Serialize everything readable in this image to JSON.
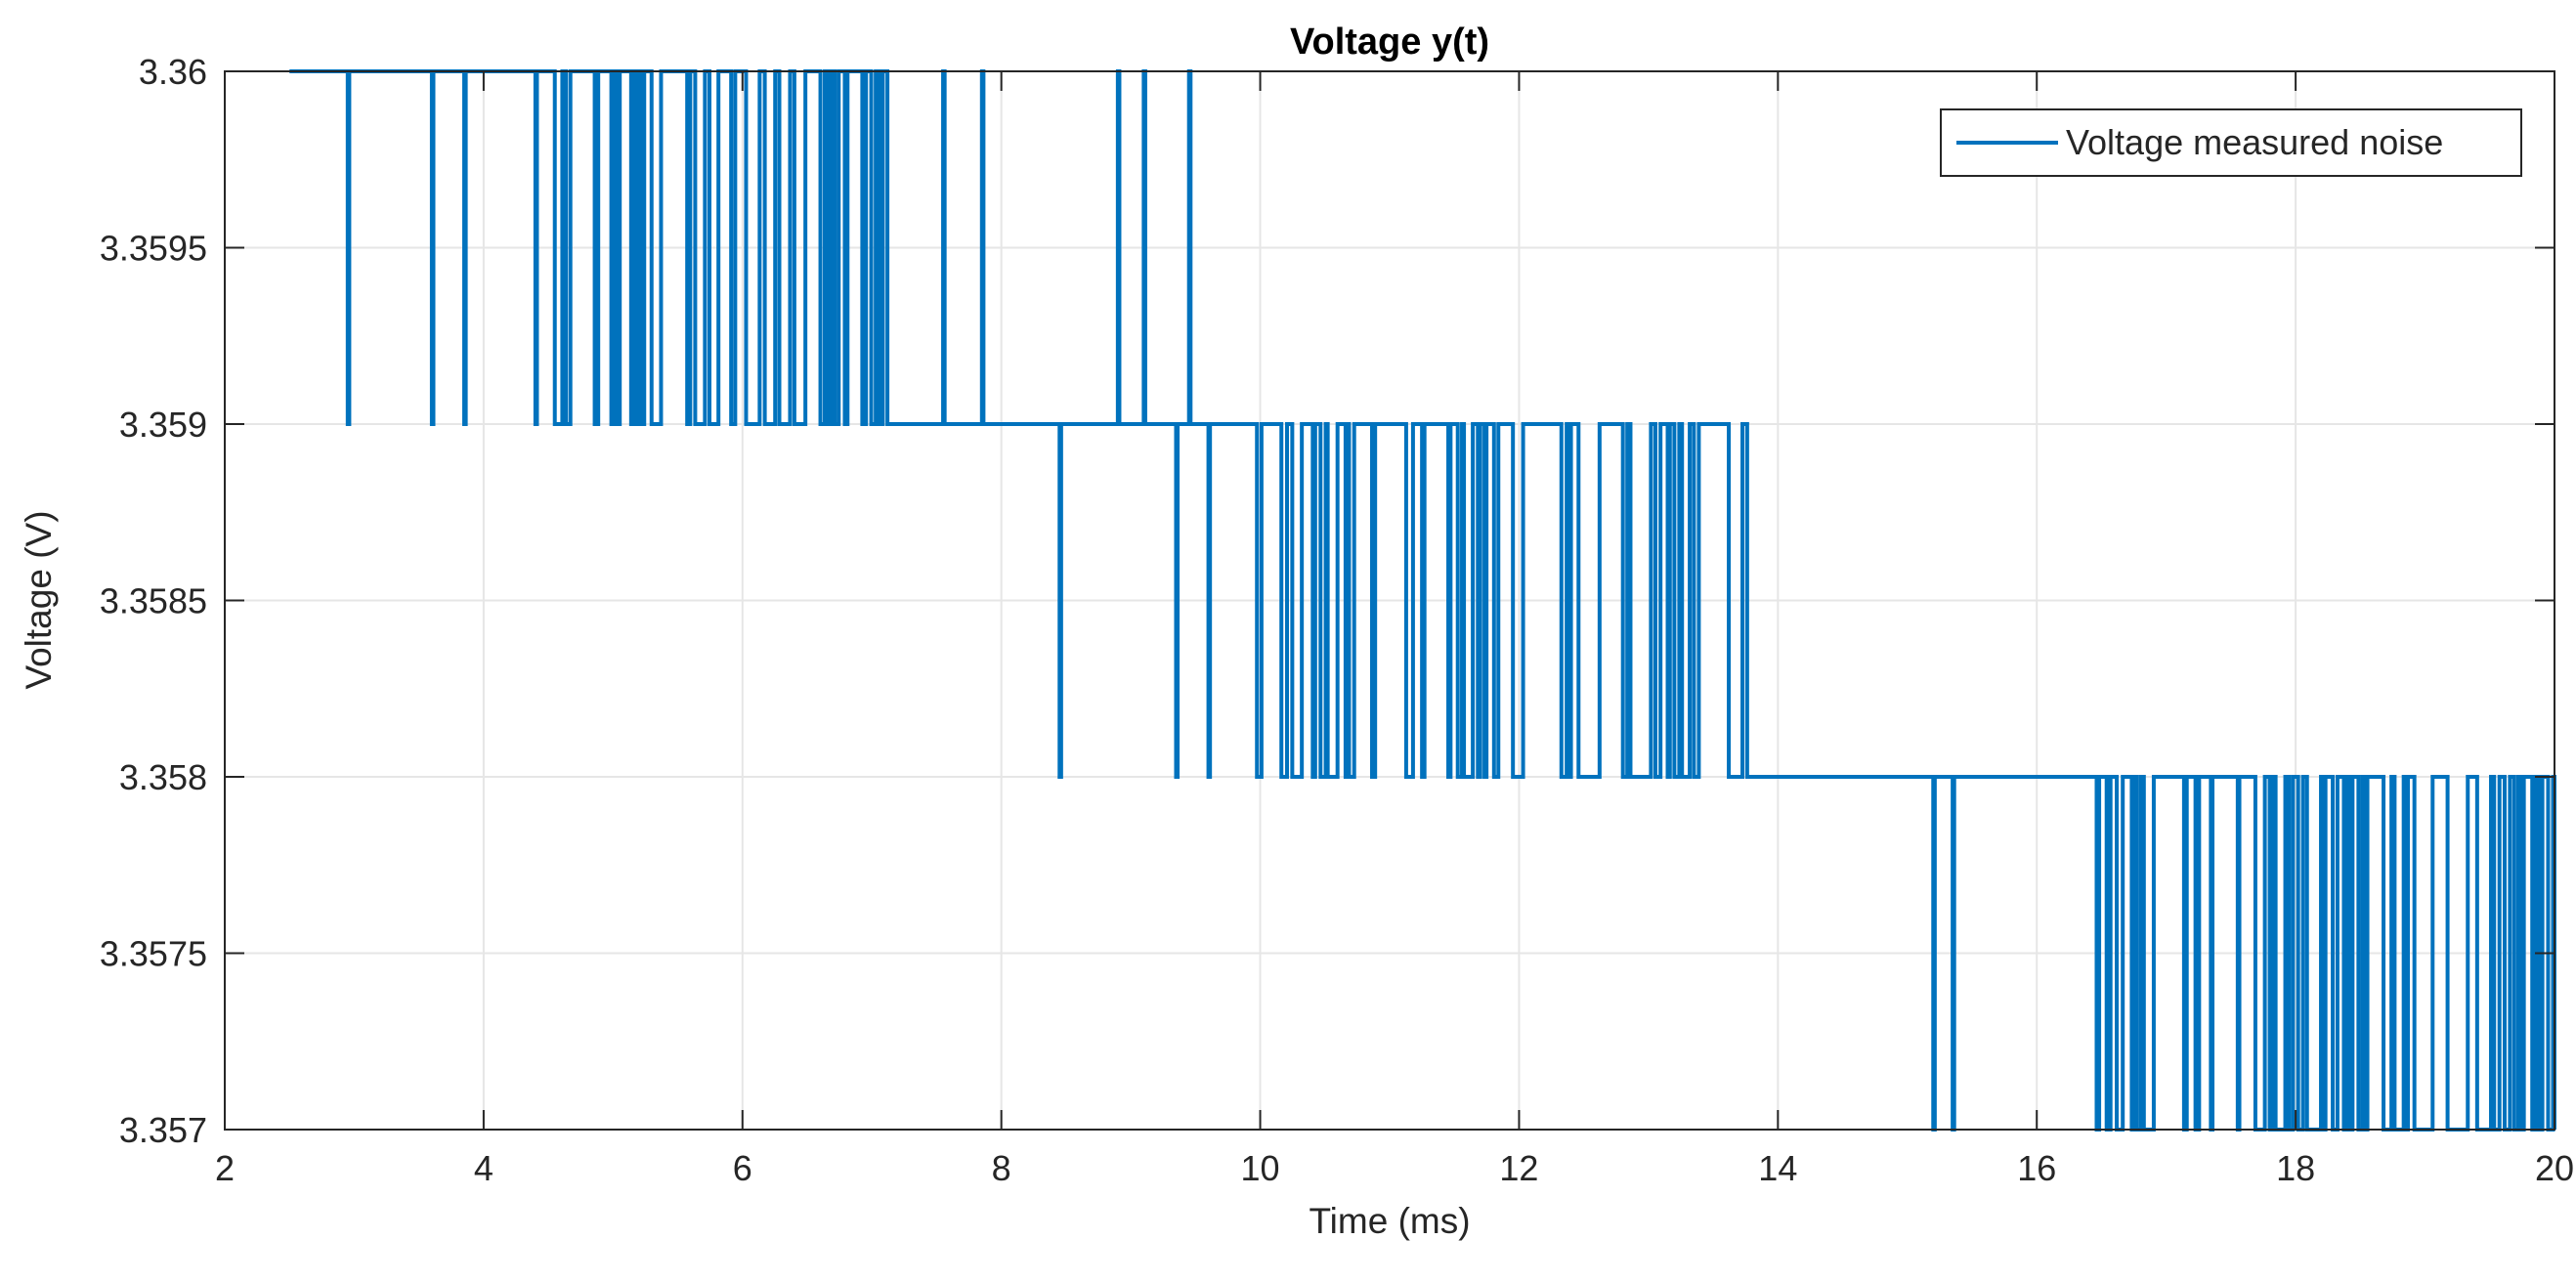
{
  "chart_data": {
    "type": "line",
    "title": "Voltage y(t)",
    "xlabel": "Time (ms)",
    "ylabel": "Voltage (V)",
    "xlim": [
      2,
      20
    ],
    "ylim": [
      3.357,
      3.36
    ],
    "xticks": [
      2,
      4,
      6,
      8,
      10,
      12,
      14,
      16,
      18,
      20
    ],
    "xtick_labels": [
      "2",
      "4",
      "6",
      "8",
      "10",
      "12",
      "14",
      "16",
      "18",
      "20"
    ],
    "yticks": [
      3.357,
      3.3575,
      3.358,
      3.3585,
      3.359,
      3.3595,
      3.36
    ],
    "ytick_labels": [
      "3.357",
      "3.3575",
      "3.358",
      "3.3585",
      "3.359",
      "3.3595",
      "3.36"
    ],
    "grid": true,
    "legend_position": "top-right",
    "series": [
      {
        "name": "Voltage measured noise",
        "color": "#0072bd",
        "x_range": [
          2.5,
          20
        ],
        "levels": [
          3.36,
          3.359,
          3.358,
          3.357
        ],
        "transitions": [
          {
            "from": 3.36,
            "to": 3.359,
            "spikes_down_ms": [
              2.95,
              3.6,
              3.85,
              4.4
            ],
            "dense_start_ms": 4.55,
            "dense_end_ms": 7.2,
            "sparse_spikes_up_ms": [
              7.55,
              7.85,
              8.9,
              9.1,
              9.45
            ],
            "settle_ms": 9.5
          },
          {
            "from": 3.359,
            "to": 3.358,
            "spikes_down_ms": [
              8.45,
              9.35,
              9.6
            ],
            "dense_start_ms": 9.95,
            "dense_end_ms": 13.8,
            "settle_ms": 13.8
          },
          {
            "from": 3.358,
            "to": 3.357,
            "spikes_down_ms": [
              15.2,
              15.35
            ],
            "dense_start_ms": 16.35,
            "dense_end_ms": 20.0,
            "settle_ms": 20.0
          }
        ]
      }
    ]
  }
}
